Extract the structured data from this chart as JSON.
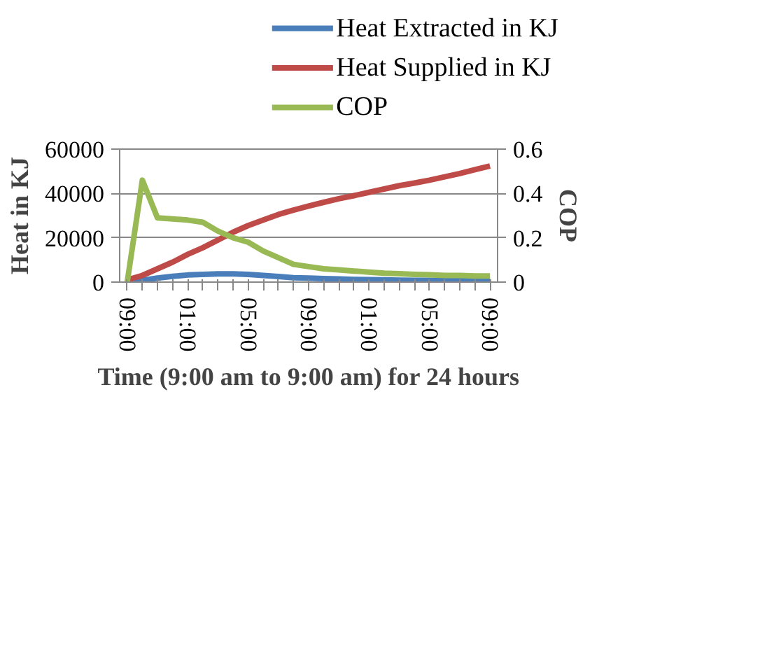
{
  "chart_data": {
    "type": "line",
    "xlabel": "Time (9:00 am to 9:00 am) for 24 hours",
    "ylabel": "Heat in KJ",
    "y2label": "COP",
    "categories": [
      "09:00",
      null,
      null,
      null,
      "01:00",
      null,
      null,
      null,
      "05:00",
      null,
      null,
      null,
      "09:00",
      null,
      null,
      null,
      "01:00",
      null,
      null,
      null,
      "05:00",
      null,
      null,
      null,
      "09:00"
    ],
    "series": [
      {
        "name": "Heat Extracted in KJ",
        "color": "#4a7ebb",
        "values": [
          0,
          800,
          1800,
          2600,
          3200,
          3500,
          3700,
          3700,
          3500,
          3000,
          2500,
          2000,
          1800,
          1600,
          1400,
          1200,
          1100,
          1000,
          900,
          800,
          800,
          700,
          700,
          600,
          600
        ]
      },
      {
        "name": "Heat Supplied in KJ",
        "color": "#be4b48",
        "values": [
          1000,
          3000,
          6000,
          9000,
          12500,
          15500,
          19000,
          22500,
          25500,
          28000,
          30500,
          32500,
          34300,
          36000,
          37600,
          39000,
          40500,
          42000,
          43500,
          44700,
          46000,
          47500,
          49000,
          50700,
          52400
        ]
      },
      {
        "name": "COP",
        "color": "#98b954",
        "axis": "y2",
        "values": [
          0,
          0.46,
          0.29,
          0.285,
          0.28,
          0.27,
          0.23,
          0.2,
          0.18,
          0.14,
          0.11,
          0.08,
          0.07,
          0.06,
          0.055,
          0.05,
          0.045,
          0.04,
          0.038,
          0.035,
          0.033,
          0.03,
          0.03,
          0.028,
          0.028
        ]
      }
    ],
    "ylim": [
      0,
      60000
    ],
    "yticks": [
      0,
      20000,
      40000,
      60000
    ],
    "y2lim": [
      0,
      0.6
    ],
    "y2ticks": [
      0,
      0.2,
      0.4,
      0.6
    ],
    "grid": "y",
    "legend": "top",
    "marker": "none",
    "line_style": "solid"
  }
}
